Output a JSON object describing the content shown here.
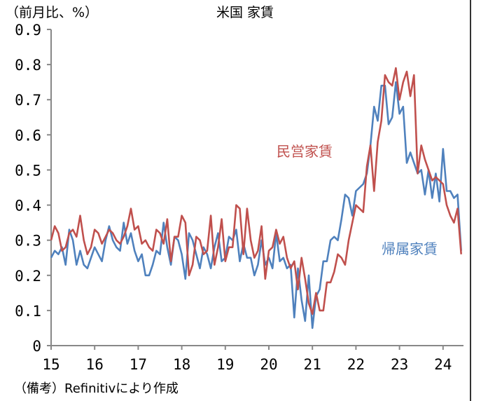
{
  "chart_data": {
    "type": "line",
    "title": "米国 家賃",
    "ylabel": "（前月比、%）",
    "source": "（備考）Refinitivにより作成",
    "ylim": [
      0,
      0.9
    ],
    "yticks": [
      "0",
      "0.1",
      "0.2",
      "0.3",
      "0.4",
      "0.5",
      "0.6",
      "0.7",
      "0.8",
      "0.9"
    ],
    "xtick_labels": [
      "15",
      "16",
      "17",
      "18",
      "19",
      "20",
      "21",
      "22",
      "23",
      "24"
    ],
    "grid": false,
    "x": [
      "2015-01",
      "2015-02",
      "2015-03",
      "2015-04",
      "2015-05",
      "2015-06",
      "2015-07",
      "2015-08",
      "2015-09",
      "2015-10",
      "2015-11",
      "2015-12",
      "2016-01",
      "2016-02",
      "2016-03",
      "2016-04",
      "2016-05",
      "2016-06",
      "2016-07",
      "2016-08",
      "2016-09",
      "2016-10",
      "2016-11",
      "2016-12",
      "2017-01",
      "2017-02",
      "2017-03",
      "2017-04",
      "2017-05",
      "2017-06",
      "2017-07",
      "2017-08",
      "2017-09",
      "2017-10",
      "2017-11",
      "2017-12",
      "2018-01",
      "2018-02",
      "2018-03",
      "2018-04",
      "2018-05",
      "2018-06",
      "2018-07",
      "2018-08",
      "2018-09",
      "2018-10",
      "2018-11",
      "2018-12",
      "2019-01",
      "2019-02",
      "2019-03",
      "2019-04",
      "2019-05",
      "2019-06",
      "2019-07",
      "2019-08",
      "2019-09",
      "2019-10",
      "2019-11",
      "2019-12",
      "2020-01",
      "2020-02",
      "2020-03",
      "2020-04",
      "2020-05",
      "2020-06",
      "2020-07",
      "2020-08",
      "2020-09",
      "2020-10",
      "2020-11",
      "2020-12",
      "2021-01",
      "2021-02",
      "2021-03",
      "2021-04",
      "2021-05",
      "2021-06",
      "2021-07",
      "2021-08",
      "2021-09",
      "2021-10",
      "2021-11",
      "2021-12",
      "2022-01",
      "2022-02",
      "2022-03",
      "2022-04",
      "2022-05",
      "2022-06",
      "2022-07",
      "2022-08",
      "2022-09",
      "2022-10",
      "2022-11",
      "2022-12",
      "2023-01",
      "2023-02",
      "2023-03",
      "2023-04",
      "2023-05",
      "2023-06",
      "2023-07",
      "2023-08",
      "2023-09",
      "2023-10",
      "2023-11",
      "2023-12",
      "2024-01",
      "2024-02",
      "2024-03",
      "2024-04",
      "2024-05",
      "2024-06"
    ],
    "series": [
      {
        "name": "民営家賃",
        "color": "#c0504d",
        "values": [
          0.3,
          0.34,
          0.32,
          0.27,
          0.28,
          0.32,
          0.33,
          0.31,
          0.37,
          0.3,
          0.26,
          0.28,
          0.33,
          0.32,
          0.29,
          0.31,
          0.33,
          0.32,
          0.3,
          0.29,
          0.31,
          0.34,
          0.39,
          0.33,
          0.34,
          0.29,
          0.3,
          0.28,
          0.27,
          0.33,
          0.32,
          0.29,
          0.36,
          0.24,
          0.31,
          0.31,
          0.37,
          0.35,
          0.2,
          0.23,
          0.31,
          0.3,
          0.26,
          0.27,
          0.37,
          0.23,
          0.28,
          0.36,
          0.24,
          0.28,
          0.28,
          0.4,
          0.39,
          0.26,
          0.39,
          0.3,
          0.25,
          0.27,
          0.34,
          0.19,
          0.27,
          0.28,
          0.33,
          0.29,
          0.31,
          0.25,
          0.22,
          0.24,
          0.16,
          0.25,
          0.19,
          0.12,
          0.09,
          0.15,
          0.1,
          0.1,
          0.18,
          0.18,
          0.21,
          0.26,
          0.25,
          0.23,
          0.3,
          0.35,
          0.4,
          0.39,
          0.38,
          0.51,
          0.57,
          0.44,
          0.58,
          0.64,
          0.77,
          0.75,
          0.74,
          0.79,
          0.7,
          0.75,
          0.78,
          0.71,
          0.77,
          0.49,
          0.57,
          0.53,
          0.5,
          0.47,
          0.48,
          0.47,
          0.46,
          0.4,
          0.37,
          0.35,
          0.39,
          0.26
        ]
      },
      {
        "name": "帰属家賃",
        "color": "#4f81bd",
        "values": [
          0.25,
          0.27,
          0.26,
          0.28,
          0.23,
          0.33,
          0.3,
          0.23,
          0.27,
          0.23,
          0.22,
          0.25,
          0.28,
          0.26,
          0.24,
          0.3,
          0.34,
          0.3,
          0.28,
          0.27,
          0.35,
          0.29,
          0.32,
          0.27,
          0.24,
          0.26,
          0.2,
          0.2,
          0.23,
          0.27,
          0.26,
          0.35,
          0.28,
          0.23,
          0.31,
          0.3,
          0.26,
          0.19,
          0.32,
          0.3,
          0.26,
          0.22,
          0.28,
          0.26,
          0.22,
          0.28,
          0.32,
          0.24,
          0.25,
          0.31,
          0.3,
          0.33,
          0.24,
          0.29,
          0.25,
          0.25,
          0.2,
          0.23,
          0.3,
          0.23,
          0.25,
          0.22,
          0.32,
          0.24,
          0.25,
          0.22,
          0.23,
          0.08,
          0.22,
          0.13,
          0.07,
          0.2,
          0.05,
          0.14,
          0.16,
          0.24,
          0.24,
          0.3,
          0.31,
          0.3,
          0.36,
          0.43,
          0.42,
          0.37,
          0.44,
          0.45,
          0.46,
          0.49,
          0.57,
          0.68,
          0.64,
          0.74,
          0.74,
          0.63,
          0.65,
          0.75,
          0.66,
          0.68,
          0.52,
          0.55,
          0.52,
          0.49,
          0.5,
          0.43,
          0.5,
          0.42,
          0.49,
          0.41,
          0.56,
          0.44,
          0.44,
          0.42,
          0.43,
          0.27
        ]
      }
    ]
  }
}
